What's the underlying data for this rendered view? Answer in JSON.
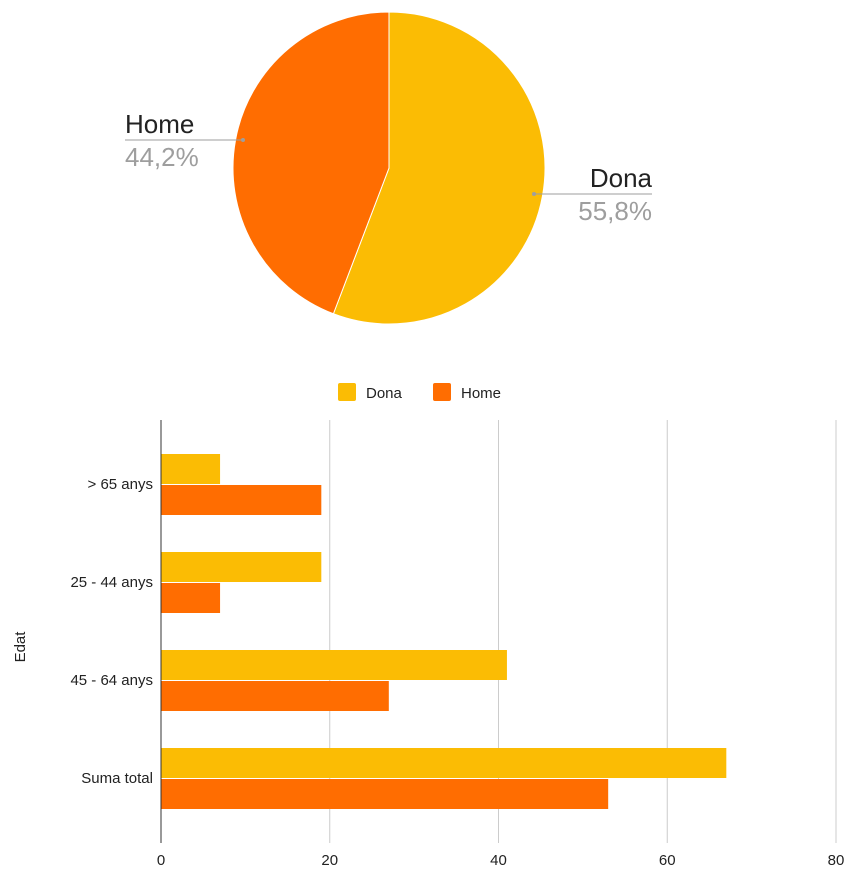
{
  "chart_data": [
    {
      "type": "pie",
      "slices": [
        {
          "label": "Dona",
          "value": 55.8,
          "pct_label": "55,8%"
        },
        {
          "label": "Home",
          "value": 44.2,
          "pct_label": "44,2%"
        }
      ],
      "colors": {
        "Dona": "#fbbc04",
        "Home": "#ff6d01"
      }
    },
    {
      "type": "bar",
      "orientation": "horizontal",
      "categories": [
        "> 65 anys",
        "25 - 44 anys",
        "45 - 64 anys",
        "Suma total"
      ],
      "series": [
        {
          "name": "Dona",
          "values": [
            7,
            19,
            41,
            67
          ],
          "color": "#fbbc04"
        },
        {
          "name": "Home",
          "values": [
            19,
            7,
            27,
            53
          ],
          "color": "#ff6d01"
        }
      ],
      "ylabel": "Edat",
      "xlim": [
        0,
        80
      ],
      "xticks": [
        "0",
        "20",
        "40",
        "60",
        "80"
      ],
      "grid": true,
      "legend": "top"
    }
  ]
}
